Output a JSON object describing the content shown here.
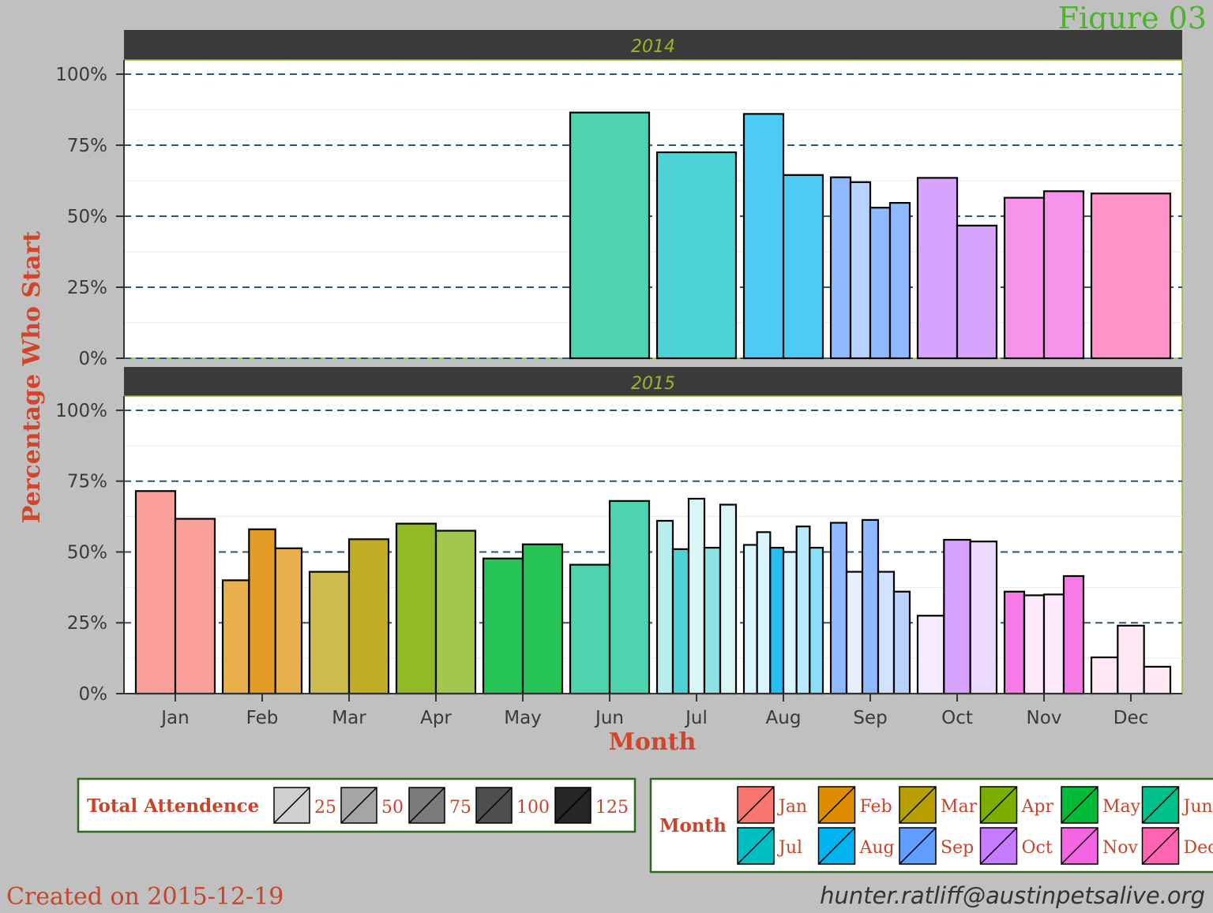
{
  "figure_label": "Figure 03",
  "created_text": "Created on 2015-12-19",
  "email": "hunter.ratliff@austinpetsalive.org",
  "colors": {
    "background": "#c0c0c0",
    "strip": "#3a3a3a",
    "strip_text": "#9ab52a",
    "gridline": "#2a5678",
    "axis_title": "#d2452a",
    "figure_label": "#4ab52a",
    "legend_border": "#2d6a1e"
  },
  "chart_data": {
    "type": "bar",
    "xlabel": "Month",
    "ylabel": "Percentage Who Start",
    "ylim": [
      0,
      1.05
    ],
    "yticks": [
      0,
      0.25,
      0.5,
      0.75,
      1.0
    ],
    "ytick_labels": [
      "0%",
      "25%",
      "50%",
      "75%",
      "100%"
    ],
    "categories": [
      "Jan",
      "Feb",
      "Mar",
      "Apr",
      "May",
      "Jun",
      "Jul",
      "Aug",
      "Sep",
      "Oct",
      "Nov",
      "Dec"
    ],
    "grid": true,
    "facets": [
      {
        "label": "2014",
        "groups": [
          {
            "month": "Jan",
            "values": []
          },
          {
            "month": "Feb",
            "values": []
          },
          {
            "month": "Mar",
            "values": []
          },
          {
            "month": "Apr",
            "values": []
          },
          {
            "month": "May",
            "values": []
          },
          {
            "month": "Jun",
            "values": [
              0.865
            ],
            "attendance": [
              100
            ]
          },
          {
            "month": "Jul",
            "values": [
              0.725
            ],
            "attendance": [
              100
            ]
          },
          {
            "month": "Aug",
            "values": [
              0.86,
              0.645
            ],
            "attendance": [
              100,
              100
            ]
          },
          {
            "month": "Sep",
            "values": [
              0.637,
              0.62,
              0.53,
              0.547
            ],
            "attendance": [
              100,
              75,
              100,
              100
            ]
          },
          {
            "month": "Oct",
            "values": [
              0.635,
              0.467
            ],
            "attendance": [
              100,
              100
            ]
          },
          {
            "month": "Nov",
            "values": [
              0.565,
              0.588
            ],
            "attendance": [
              100,
              100
            ]
          },
          {
            "month": "Dec",
            "values": [
              0.58
            ],
            "attendance": [
              100
            ]
          }
        ]
      },
      {
        "label": "2015",
        "groups": [
          {
            "month": "Jan",
            "values": [
              0.715,
              0.617
            ],
            "attendance": [
              100,
              100
            ]
          },
          {
            "month": "Feb",
            "values": [
              0.4,
              0.58,
              0.513
            ],
            "attendance": [
              100,
              125,
              100
            ]
          },
          {
            "month": "Mar",
            "values": [
              0.43,
              0.545
            ],
            "attendance": [
              100,
              125
            ]
          },
          {
            "month": "Apr",
            "values": [
              0.6,
              0.575
            ],
            "attendance": [
              125,
              100
            ]
          },
          {
            "month": "May",
            "values": [
              0.477,
              0.527
            ],
            "attendance": [
              125,
              125
            ]
          },
          {
            "month": "Jun",
            "values": [
              0.455,
              0.68
            ],
            "attendance": [
              100,
              100
            ]
          },
          {
            "month": "Jul",
            "values": [
              0.61,
              0.51,
              0.688,
              0.515,
              0.667
            ],
            "attendance": [
              50,
              100,
              25,
              75,
              25
            ]
          },
          {
            "month": "Aug",
            "values": [
              0.525,
              0.57,
              0.515,
              0.5,
              0.59,
              0.515
            ],
            "attendance": [
              25,
              25,
              125,
              25,
              50,
              75
            ]
          },
          {
            "month": "Sep",
            "values": [
              0.603,
              0.43,
              0.613,
              0.43,
              0.36
            ],
            "attendance": [
              100,
              25,
              100,
              50,
              75
            ]
          },
          {
            "month": "Oct",
            "values": [
              0.275,
              0.543,
              0.537
            ],
            "attendance": [
              25,
              100,
              50
            ]
          },
          {
            "month": "Nov",
            "values": [
              0.36,
              0.347,
              0.35,
              0.415
            ],
            "attendance": [
              125,
              25,
              25,
              125
            ]
          },
          {
            "month": "Dec",
            "values": [
              0.128,
              0.24,
              0.095
            ],
            "attendance": [
              25,
              25,
              25
            ]
          }
        ]
      }
    ],
    "month_colors": [
      "#f8766d",
      "#de8c00",
      "#b79f00",
      "#7cae00",
      "#00ba38",
      "#00c08b",
      "#00bfc4",
      "#00b4f0",
      "#619cff",
      "#c77cff",
      "#f564e3",
      "#ff64b0"
    ]
  },
  "legends": {
    "attendance": {
      "title": "Total Attendence",
      "items": [
        {
          "label": "25",
          "color": "#cfcfcf"
        },
        {
          "label": "50",
          "color": "#a5a5a5"
        },
        {
          "label": "75",
          "color": "#7b7b7b"
        },
        {
          "label": "100",
          "color": "#4e4e4e"
        },
        {
          "label": "125",
          "color": "#262626"
        }
      ]
    },
    "month": {
      "title": "Month",
      "items": [
        {
          "label": "Jan",
          "color": "#f8766d"
        },
        {
          "label": "Feb",
          "color": "#de8c00"
        },
        {
          "label": "Mar",
          "color": "#b79f00"
        },
        {
          "label": "Apr",
          "color": "#7cae00"
        },
        {
          "label": "May",
          "color": "#00ba38"
        },
        {
          "label": "Jun",
          "color": "#00c08b"
        },
        {
          "label": "Jul",
          "color": "#00bfc4"
        },
        {
          "label": "Aug",
          "color": "#00b4f0"
        },
        {
          "label": "Sep",
          "color": "#619cff"
        },
        {
          "label": "Oct",
          "color": "#c77cff"
        },
        {
          "label": "Nov",
          "color": "#f564e3"
        },
        {
          "label": "Dec",
          "color": "#ff64b0"
        }
      ]
    }
  }
}
